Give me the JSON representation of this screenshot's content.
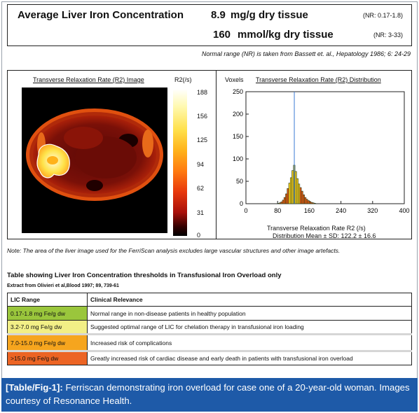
{
  "header": {
    "title": "Average Liver Iron Concentration",
    "row1_value": "8.9",
    "row1_unit": "mg/g dry tissue",
    "row1_normal": "(NR: 0.17-1.8)",
    "row2_value": "160",
    "row2_unit": "mmol/kg dry tissue",
    "row2_normal": "(NR: 3-33)",
    "reference_note": "Normal range (NR) is taken from Bassett et. al., Hepatology 1986; 6: 24-29"
  },
  "image_panel": {
    "r2_image_title": "Transverse Relaxation Rate (R2) Image",
    "r2_unit_label": "R2(/s)",
    "colorbar_ticks": [
      "188",
      "156",
      "125",
      "94",
      "62",
      "31",
      "0"
    ],
    "colorbar_colors": [
      "#ffffff",
      "#ffe04a",
      "#ff7a10",
      "#a8100a",
      "#000000"
    ]
  },
  "chart_data": {
    "type": "bar",
    "title": "Transverse Relaxation Rate (R2) Distribution",
    "ylabel": "Voxels",
    "xlabel": "Transverse Relaxation Rate R2 (/s)",
    "annotation": "Distribution Mean ± SD: 122.2 ± 16.6",
    "xlim": [
      0,
      400
    ],
    "ylim": [
      0,
      250
    ],
    "xticks": [
      "0",
      "80",
      "160",
      "240",
      "320",
      "400"
    ],
    "yticks": [
      "0",
      "50",
      "100",
      "150",
      "200",
      "250"
    ],
    "mean_line": 122.2,
    "bin_width": 4,
    "x": [
      80,
      84,
      88,
      92,
      96,
      100,
      104,
      108,
      112,
      116,
      120,
      124,
      128,
      132,
      136,
      140,
      144,
      148,
      152,
      156,
      160,
      164,
      168,
      172
    ],
    "values": [
      1,
      2,
      4,
      8,
      14,
      22,
      34,
      46,
      58,
      74,
      86,
      72,
      56,
      44,
      36,
      28,
      20,
      14,
      10,
      7,
      5,
      3,
      2,
      1
    ],
    "grid": false,
    "colors": {
      "bar_high": "#ffd21a",
      "bar_low": "#e85a10",
      "outline": "#1d3a1d",
      "mean_line": "#3a7bd5"
    }
  },
  "panel_note": "Note: The area of the liver image used for the FerriScan analysis excludes large vascular structures and other image artefacts.",
  "table": {
    "title": "Table showing Liver Iron Concentration thresholds in Transfusional Iron Overload only",
    "source": "Extract from Olivieri et al,Blood 1997; 89, 739-61",
    "headers": [
      "LIC Range",
      "Clinical Relevance"
    ],
    "rows": [
      {
        "range": "0.17-1.8 mg Fe/g dw",
        "relevance": "Normal range in non-disease patients in healthy population",
        "color": "#9ac63c"
      },
      {
        "range": "3.2-7.0 mg Fe/g dw",
        "relevance": "Suggested optimal range of LIC for chelation therapy in transfusional iron loading",
        "color": "#f2ef86"
      },
      {
        "range": "7.0-15.0 mg Fe/g dw",
        "relevance": "Increased risk of complications",
        "color": "#f6a51e"
      },
      {
        "range": ">15.0 mg Fe/g dw",
        "relevance": "Greatly increased risk of cardiac disease and early death in patients with transfusional iron overload",
        "color": "#ec6424"
      }
    ]
  },
  "caption": {
    "label": "[Table/Fig-1]:",
    "text": " Ferriscan demonstrating iron overload for case one of a 20-year-old woman. Images courtesy of Resonance Health.",
    "background": "#1e5aa8"
  }
}
